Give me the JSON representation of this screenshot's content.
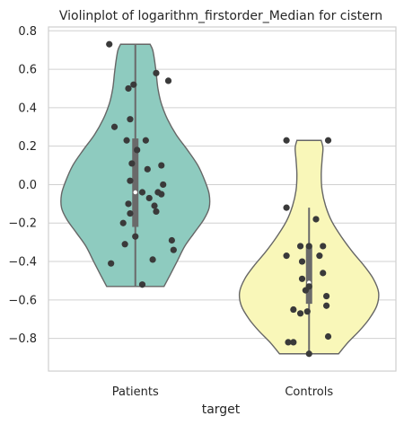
{
  "chart_data": {
    "type": "violin",
    "title": "Violinplot of logarithm_firstorder_Median for cistern",
    "xlabel": "target",
    "ylabel": "",
    "ylim": [
      -0.97,
      0.82
    ],
    "yticks": [
      -0.8,
      -0.6,
      -0.4,
      -0.2,
      0.0,
      0.2,
      0.4,
      0.6,
      0.8
    ],
    "ytick_labels": [
      "−0.8",
      "−0.6",
      "−0.4",
      "−0.2",
      "0.0",
      "0.2",
      "0.4",
      "0.6",
      "0.8"
    ],
    "grid": "horizontal",
    "categories": [
      "Patients",
      "Controls"
    ],
    "colors": {
      "Patients": "#8ecbbf",
      "Controls": "#f9f7b9",
      "edge": "#666666",
      "points": "#3a3a3a",
      "grid": "#d0d0d0",
      "box": "#6a6a6a"
    },
    "violins": [
      {
        "category": "Patients",
        "profile": [
          {
            "y": -0.53,
            "w": 0.33
          },
          {
            "y": -0.47,
            "w": 0.4
          },
          {
            "y": -0.4,
            "w": 0.48
          },
          {
            "y": -0.32,
            "w": 0.57
          },
          {
            "y": -0.25,
            "w": 0.68
          },
          {
            "y": -0.18,
            "w": 0.79
          },
          {
            "y": -0.12,
            "w": 0.85
          },
          {
            "y": -0.05,
            "w": 0.85
          },
          {
            "y": 0.02,
            "w": 0.8
          },
          {
            "y": 0.1,
            "w": 0.72
          },
          {
            "y": 0.18,
            "w": 0.6
          },
          {
            "y": 0.26,
            "w": 0.47
          },
          {
            "y": 0.34,
            "w": 0.37
          },
          {
            "y": 0.42,
            "w": 0.3
          },
          {
            "y": 0.5,
            "w": 0.26
          },
          {
            "y": 0.58,
            "w": 0.24
          },
          {
            "y": 0.65,
            "w": 0.22
          },
          {
            "y": 0.7,
            "w": 0.2
          },
          {
            "y": 0.73,
            "w": 0.17
          }
        ],
        "box": {
          "whisker_low": -0.53,
          "q1": -0.22,
          "median": -0.04,
          "q3": 0.24,
          "whisker_high": 0.73
        },
        "points": [
          {
            "x": 0.85,
            "y": 0.73
          },
          {
            "x": 1.12,
            "y": 0.58
          },
          {
            "x": 1.19,
            "y": 0.54
          },
          {
            "x": 0.99,
            "y": 0.52
          },
          {
            "x": 0.96,
            "y": 0.5
          },
          {
            "x": 0.97,
            "y": 0.34
          },
          {
            "x": 0.88,
            "y": 0.3
          },
          {
            "x": 0.95,
            "y": 0.23
          },
          {
            "x": 1.06,
            "y": 0.23
          },
          {
            "x": 1.01,
            "y": 0.18
          },
          {
            "x": 0.98,
            "y": 0.11
          },
          {
            "x": 1.15,
            "y": 0.1
          },
          {
            "x": 1.07,
            "y": 0.08
          },
          {
            "x": 0.97,
            "y": 0.02
          },
          {
            "x": 1.16,
            "y": 0.0
          },
          {
            "x": 1.04,
            "y": -0.04
          },
          {
            "x": 1.13,
            "y": -0.04
          },
          {
            "x": 1.15,
            "y": -0.05
          },
          {
            "x": 1.08,
            "y": -0.07
          },
          {
            "x": 0.96,
            "y": -0.1
          },
          {
            "x": 1.11,
            "y": -0.11
          },
          {
            "x": 1.12,
            "y": -0.14
          },
          {
            "x": 0.97,
            "y": -0.15
          },
          {
            "x": 0.93,
            "y": -0.2
          },
          {
            "x": 1.0,
            "y": -0.27
          },
          {
            "x": 1.21,
            "y": -0.29
          },
          {
            "x": 0.94,
            "y": -0.31
          },
          {
            "x": 1.22,
            "y": -0.34
          },
          {
            "x": 1.1,
            "y": -0.39
          },
          {
            "x": 0.86,
            "y": -0.41
          },
          {
            "x": 1.04,
            "y": -0.52
          }
        ]
      },
      {
        "category": "Controls",
        "profile": [
          {
            "y": -0.88,
            "w": 0.34
          },
          {
            "y": -0.82,
            "w": 0.45
          },
          {
            "y": -0.76,
            "w": 0.58
          },
          {
            "y": -0.7,
            "w": 0.69
          },
          {
            "y": -0.63,
            "w": 0.78
          },
          {
            "y": -0.56,
            "w": 0.8
          },
          {
            "y": -0.49,
            "w": 0.74
          },
          {
            "y": -0.42,
            "w": 0.63
          },
          {
            "y": -0.35,
            "w": 0.5
          },
          {
            "y": -0.27,
            "w": 0.37
          },
          {
            "y": -0.19,
            "w": 0.26
          },
          {
            "y": -0.11,
            "w": 0.19
          },
          {
            "y": -0.03,
            "w": 0.15
          },
          {
            "y": 0.05,
            "w": 0.14
          },
          {
            "y": 0.13,
            "w": 0.15
          },
          {
            "y": 0.19,
            "w": 0.16
          },
          {
            "y": 0.23,
            "w": 0.14
          }
        ],
        "box": {
          "whisker_low": -0.88,
          "q1": -0.62,
          "median": -0.51,
          "q3": -0.32,
          "whisker_high": -0.12
        },
        "points": [
          {
            "x": 1.87,
            "y": 0.23
          },
          {
            "x": 2.11,
            "y": 0.23
          },
          {
            "x": 1.87,
            "y": -0.12
          },
          {
            "x": 2.04,
            "y": -0.18
          },
          {
            "x": 1.95,
            "y": -0.32
          },
          {
            "x": 2.0,
            "y": -0.32
          },
          {
            "x": 2.08,
            "y": -0.32
          },
          {
            "x": 1.87,
            "y": -0.37
          },
          {
            "x": 1.96,
            "y": -0.4
          },
          {
            "x": 2.06,
            "y": -0.37
          },
          {
            "x": 2.08,
            "y": -0.46
          },
          {
            "x": 1.96,
            "y": -0.49
          },
          {
            "x": 2.0,
            "y": -0.53
          },
          {
            "x": 1.98,
            "y": -0.55
          },
          {
            "x": 2.1,
            "y": -0.58
          },
          {
            "x": 2.1,
            "y": -0.63
          },
          {
            "x": 1.91,
            "y": -0.65
          },
          {
            "x": 1.95,
            "y": -0.67
          },
          {
            "x": 1.99,
            "y": -0.66
          },
          {
            "x": 2.11,
            "y": -0.79
          },
          {
            "x": 1.91,
            "y": -0.82
          },
          {
            "x": 1.88,
            "y": -0.82
          },
          {
            "x": 2.0,
            "y": -0.88
          }
        ]
      }
    ]
  }
}
